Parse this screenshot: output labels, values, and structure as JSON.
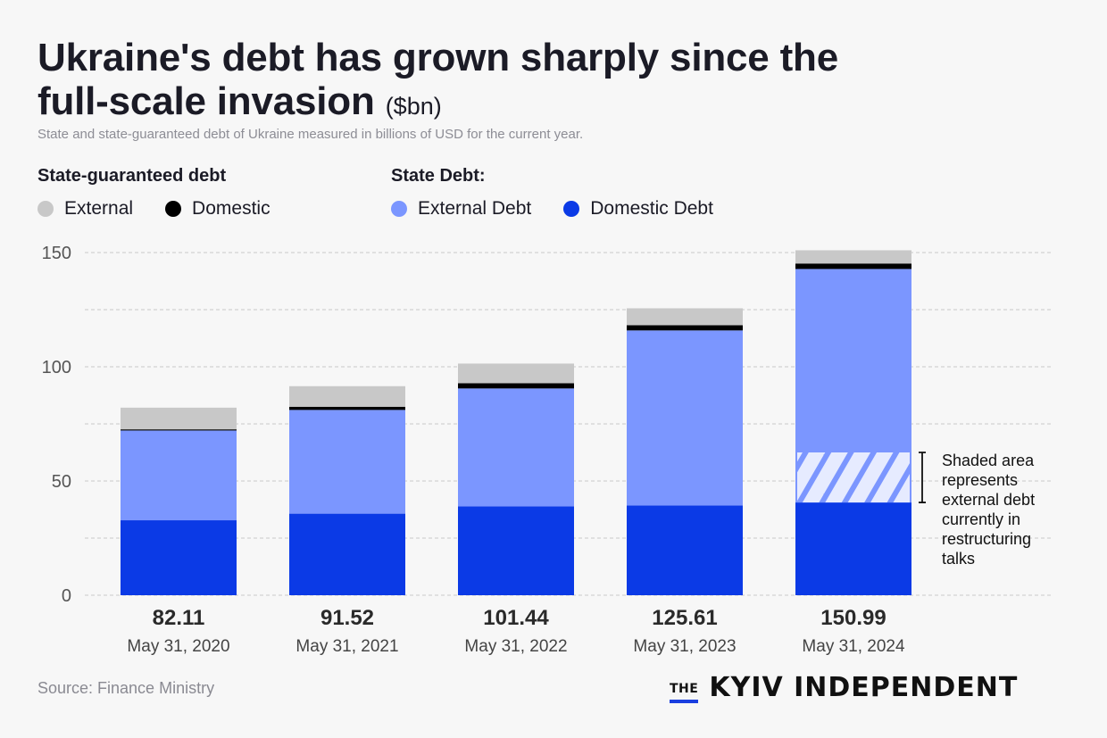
{
  "header": {
    "title": "Ukraine's debt has grown sharply since the full-scale invasion",
    "title_unit": "($bn)",
    "subtitle": "State and state-guaranteed debt of Ukraine measured in billions of USD for the current year."
  },
  "legend": {
    "guaranteed": {
      "title": "State-guaranteed debt",
      "items": [
        {
          "label": "External",
          "color": "#c8c8c8"
        },
        {
          "label": "Domestic",
          "color": "#000000"
        }
      ]
    },
    "state": {
      "title": "State Debt:",
      "items": [
        {
          "label": "External Debt",
          "color": "#7b96ff"
        },
        {
          "label": "Domestic Debt",
          "color": "#0b3ae6"
        }
      ]
    }
  },
  "annotation": {
    "lines": [
      "Shaded area",
      "represents",
      "external debt",
      "currently in",
      "restructuring",
      "talks"
    ]
  },
  "footer": {
    "source": "Source: Finance Ministry",
    "logo_the": "THE",
    "logo_name": "KYIV INDEPENDENT"
  },
  "chart_data": {
    "type": "bar",
    "stacked": true,
    "title": "Ukraine's debt has grown sharply since the full-scale invasion",
    "ylabel": "$bn",
    "ylim": [
      0,
      150
    ],
    "yticks": [
      0,
      50,
      100,
      150
    ],
    "grid_step": 25,
    "grid": true,
    "categories": [
      "May 31, 2020",
      "May 31, 2021",
      "May 31, 2022",
      "May 31, 2023",
      "May 31, 2024"
    ],
    "totals": [
      "82.11",
      "91.52",
      "101.44",
      "125.61",
      "150.99"
    ],
    "series": [
      {
        "name": "State Domestic Debt",
        "color": "#0b3ae6",
        "values": [
          32.8,
          35.7,
          38.9,
          39.3,
          40.6
        ]
      },
      {
        "name": "State External Debt",
        "color": "#7b96ff",
        "values": [
          39.3,
          45.4,
          51.6,
          76.6,
          102.2
        ]
      },
      {
        "name": "State-guaranteed Domestic",
        "color": "#000000",
        "values": [
          0.5,
          1.4,
          2.3,
          2.3,
          2.4
        ]
      },
      {
        "name": "State-guaranteed External",
        "color": "#c8c8c8",
        "values": [
          9.5,
          9.0,
          8.6,
          7.4,
          5.8
        ]
      }
    ],
    "restructuring_shaded": {
      "category": "May 31, 2024",
      "from": 40.6,
      "to": 62.5
    }
  }
}
